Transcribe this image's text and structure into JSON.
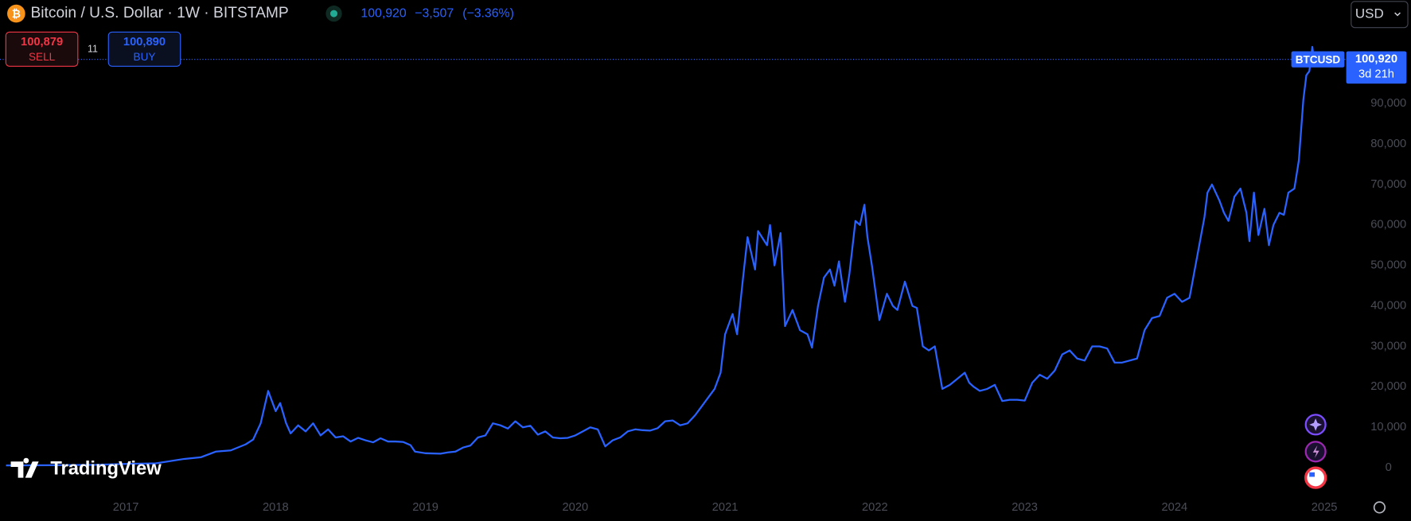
{
  "toolbar": {
    "title": "Bitcoin / U.S. Dollar · 1W · BITSTAMP",
    "price": "100,920",
    "change": "−3,507",
    "change_pct": "(−3.36%)",
    "sell_price": "100,879",
    "sell": "SELL",
    "spread": "11",
    "buy_price": "100,890",
    "buy": "BUY",
    "currency": "USD"
  },
  "branding": "TradingView",
  "chart_data": {
    "type": "line",
    "last_price": {
      "value": 100920,
      "label": "100,920"
    },
    "countdown": "3d 21h",
    "xlim": [
      2016.16,
      2025.14
    ],
    "xticks": [
      2017,
      2018,
      2019,
      2020,
      2021,
      2022,
      2023,
      2024,
      2025
    ],
    "ylim": [
      -6222,
      115556
    ],
    "yticks": [
      0,
      {
        "value": 10000,
        "label": "10,000"
      },
      {
        "value": 20000,
        "label": "20,000"
      },
      {
        "value": 30000,
        "label": "30,000"
      },
      {
        "value": 40000,
        "label": "40,000"
      },
      {
        "value": 50000,
        "label": "50,000"
      },
      {
        "value": 60000,
        "label": "60,000"
      },
      {
        "value": 70000,
        "label": "70,000"
      },
      {
        "value": 80000,
        "label": "80,000"
      },
      {
        "value": 90000,
        "label": "90,000"
      }
    ],
    "grid": false,
    "x": [
      2016.2,
      2016.5,
      2016.8,
      2017.0,
      2017.2,
      2017.39,
      2017.5,
      2017.6,
      2017.7,
      2017.8,
      2017.85,
      2017.9,
      2017.95,
      2018.0,
      2018.03,
      2018.07,
      2018.1,
      2018.15,
      2018.2,
      2018.25,
      2018.3,
      2018.35,
      2018.4,
      2018.45,
      2018.5,
      2018.55,
      2018.6,
      2018.65,
      2018.7,
      2018.75,
      2018.8,
      2018.85,
      2018.9,
      2018.93,
      2019.0,
      2019.1,
      2019.15,
      2019.2,
      2019.25,
      2019.3,
      2019.35,
      2019.4,
      2019.45,
      2019.5,
      2019.55,
      2019.6,
      2019.65,
      2019.7,
      2019.75,
      2019.8,
      2019.85,
      2019.9,
      2019.95,
      2020.0,
      2020.05,
      2020.1,
      2020.15,
      2020.2,
      2020.25,
      2020.3,
      2020.35,
      2020.4,
      2020.45,
      2020.5,
      2020.55,
      2020.6,
      2020.65,
      2020.7,
      2020.75,
      2020.8,
      2020.85,
      2020.9,
      2020.93,
      2020.97,
      2021.0,
      2021.05,
      2021.08,
      2021.12,
      2021.15,
      2021.2,
      2021.22,
      2021.28,
      2021.3,
      2021.33,
      2021.37,
      2021.4,
      2021.45,
      2021.5,
      2021.55,
      2021.58,
      2021.62,
      2021.66,
      2021.7,
      2021.73,
      2021.76,
      2021.8,
      2021.83,
      2021.87,
      2021.9,
      2021.93,
      2021.95,
      2021.98,
      2022.03,
      2022.08,
      2022.12,
      2022.15,
      2022.2,
      2022.25,
      2022.28,
      2022.32,
      2022.36,
      2022.4,
      2022.45,
      2022.5,
      2022.55,
      2022.6,
      2022.63,
      2022.66,
      2022.7,
      2022.75,
      2022.8,
      2022.85,
      2022.9,
      2022.95,
      2023.0,
      2023.05,
      2023.1,
      2023.15,
      2023.2,
      2023.25,
      2023.3,
      2023.35,
      2023.4,
      2023.45,
      2023.5,
      2023.55,
      2023.6,
      2023.65,
      2023.7,
      2023.75,
      2023.8,
      2023.85,
      2023.9,
      2023.95,
      2024.0,
      2024.05,
      2024.1,
      2024.15,
      2024.2,
      2024.22,
      2024.25,
      2024.3,
      2024.33,
      2024.36,
      2024.4,
      2024.44,
      2024.48,
      2024.5,
      2024.53,
      2024.56,
      2024.6,
      2024.63,
      2024.66,
      2024.7,
      2024.73,
      2024.76,
      2024.8,
      2024.83,
      2024.86,
      2024.88,
      2024.9,
      2024.92,
      2024.93
    ],
    "series": [
      {
        "name": "BTCUSD",
        "color": "#2962ff",
        "values": [
          600,
          650,
          740,
          970,
          1100,
          2200,
          2600,
          4000,
          4300,
          5800,
          7000,
          11000,
          19000,
          14000,
          16000,
          11000,
          8500,
          10500,
          9000,
          11000,
          8000,
          9500,
          7500,
          7800,
          6500,
          7400,
          6800,
          6300,
          7300,
          6500,
          6500,
          6400,
          5600,
          4000,
          3600,
          3500,
          3800,
          4000,
          5000,
          5500,
          7500,
          8000,
          11000,
          10500,
          9700,
          11500,
          10000,
          10400,
          8200,
          9000,
          7500,
          7300,
          7400,
          8000,
          9000,
          10000,
          9500,
          5300,
          6800,
          7500,
          9000,
          9500,
          9300,
          9200,
          9800,
          11500,
          11700,
          10500,
          11000,
          13000,
          15500,
          18000,
          19500,
          23500,
          33000,
          38000,
          33000,
          47000,
          57000,
          49000,
          58500,
          55000,
          60000,
          50000,
          58000,
          35000,
          39000,
          34000,
          33000,
          29700,
          40000,
          47000,
          49000,
          45000,
          51000,
          41000,
          48000,
          61000,
          60000,
          65000,
          57000,
          50000,
          36500,
          43000,
          40000,
          39000,
          46000,
          40000,
          39500,
          30000,
          29000,
          30000,
          19500,
          20500,
          22000,
          23500,
          21000,
          20000,
          19000,
          19500,
          20500,
          16500,
          16800,
          16800,
          16600,
          21000,
          23000,
          22000,
          24000,
          28000,
          29000,
          27000,
          26500,
          30000,
          30000,
          29500,
          26000,
          26000,
          26500,
          27000,
          34000,
          37000,
          37500,
          42000,
          43000,
          41000,
          42000,
          52000,
          62000,
          68000,
          70000,
          66000,
          63000,
          61000,
          67000,
          69000,
          63000,
          56000,
          68000,
          57500,
          64000,
          55000,
          60000,
          63000,
          62500,
          68000,
          69000,
          76000,
          91000,
          97000,
          98000,
          104000,
          100920
        ]
      }
    ]
  }
}
